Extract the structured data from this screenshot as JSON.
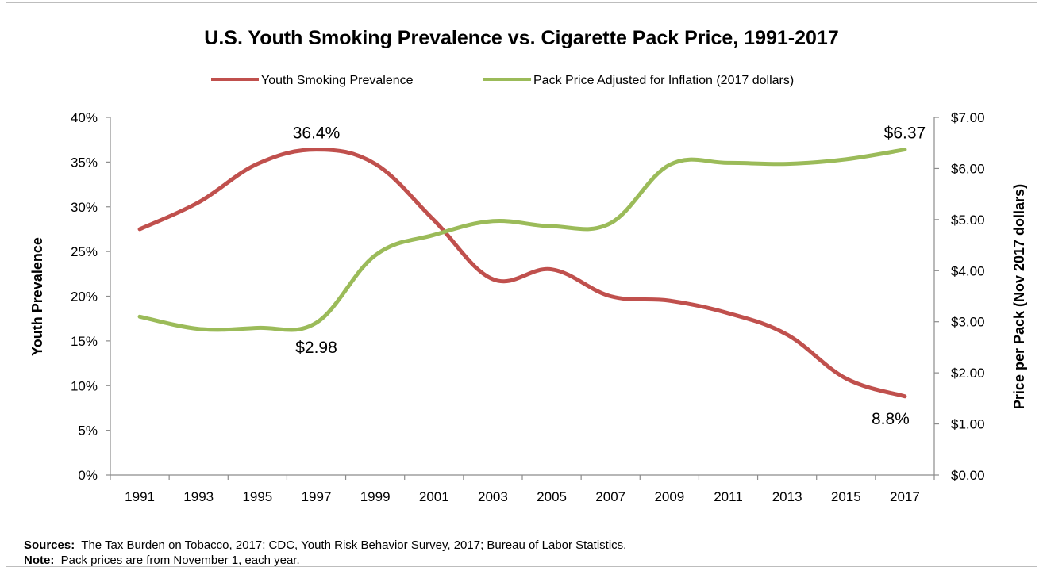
{
  "chart_data": {
    "type": "line",
    "title": "U.S. Youth Smoking Prevalence vs. Cigarette Pack Price, 1991-2017",
    "x": [
      "1991",
      "1993",
      "1995",
      "1997",
      "1999",
      "2001",
      "2003",
      "2005",
      "2007",
      "2009",
      "2011",
      "2013",
      "2015",
      "2017"
    ],
    "series": [
      {
        "name": "Youth Smoking Prevalence",
        "axis": "left",
        "color": "#c0504d",
        "values": [
          27.5,
          30.5,
          34.8,
          36.4,
          34.8,
          28.5,
          21.9,
          23.0,
          20.0,
          19.5,
          18.1,
          15.7,
          10.8,
          8.8
        ]
      },
      {
        "name": "Pack Price Adjusted for Inflation (2017 dollars)",
        "axis": "right",
        "color": "#9bbb59",
        "values": [
          3.1,
          2.86,
          2.88,
          2.98,
          4.3,
          4.7,
          4.97,
          4.87,
          4.93,
          6.07,
          6.11,
          6.09,
          6.18,
          6.37
        ]
      }
    ],
    "ylabel_left": "Youth Prevalence",
    "ylim_left": [
      0,
      40
    ],
    "yticks_left": [
      "0%",
      "5%",
      "10%",
      "15%",
      "20%",
      "25%",
      "30%",
      "35%",
      "40%"
    ],
    "ylabel_right": "Price per Pack (Nov 2017 dollars)",
    "ylim_right": [
      0,
      7
    ],
    "yticks_right": [
      "$0.00",
      "$1.00",
      "$2.00",
      "$3.00",
      "$4.00",
      "$5.00",
      "$6.00",
      "$7.00"
    ],
    "grid": false,
    "legend_position": "top",
    "annotations": [
      {
        "text": "36.4%",
        "series": 0,
        "index": 3,
        "position": "above"
      },
      {
        "text": "$2.98",
        "series": 1,
        "index": 3,
        "position": "below"
      },
      {
        "text": "$6.37",
        "series": 1,
        "index": 13,
        "position": "above"
      },
      {
        "text": "8.8%",
        "series": 0,
        "index": 13,
        "position": "above-left"
      }
    ]
  },
  "notes": {
    "sources_label": "Sources:",
    "sources_text": "The Tax Burden on Tobacco, 2017; CDC, Youth Risk Behavior Survey, 2017; Bureau of Labor Statistics.",
    "note_label": "Note:",
    "note_text": "Pack prices are from November 1, each year."
  }
}
